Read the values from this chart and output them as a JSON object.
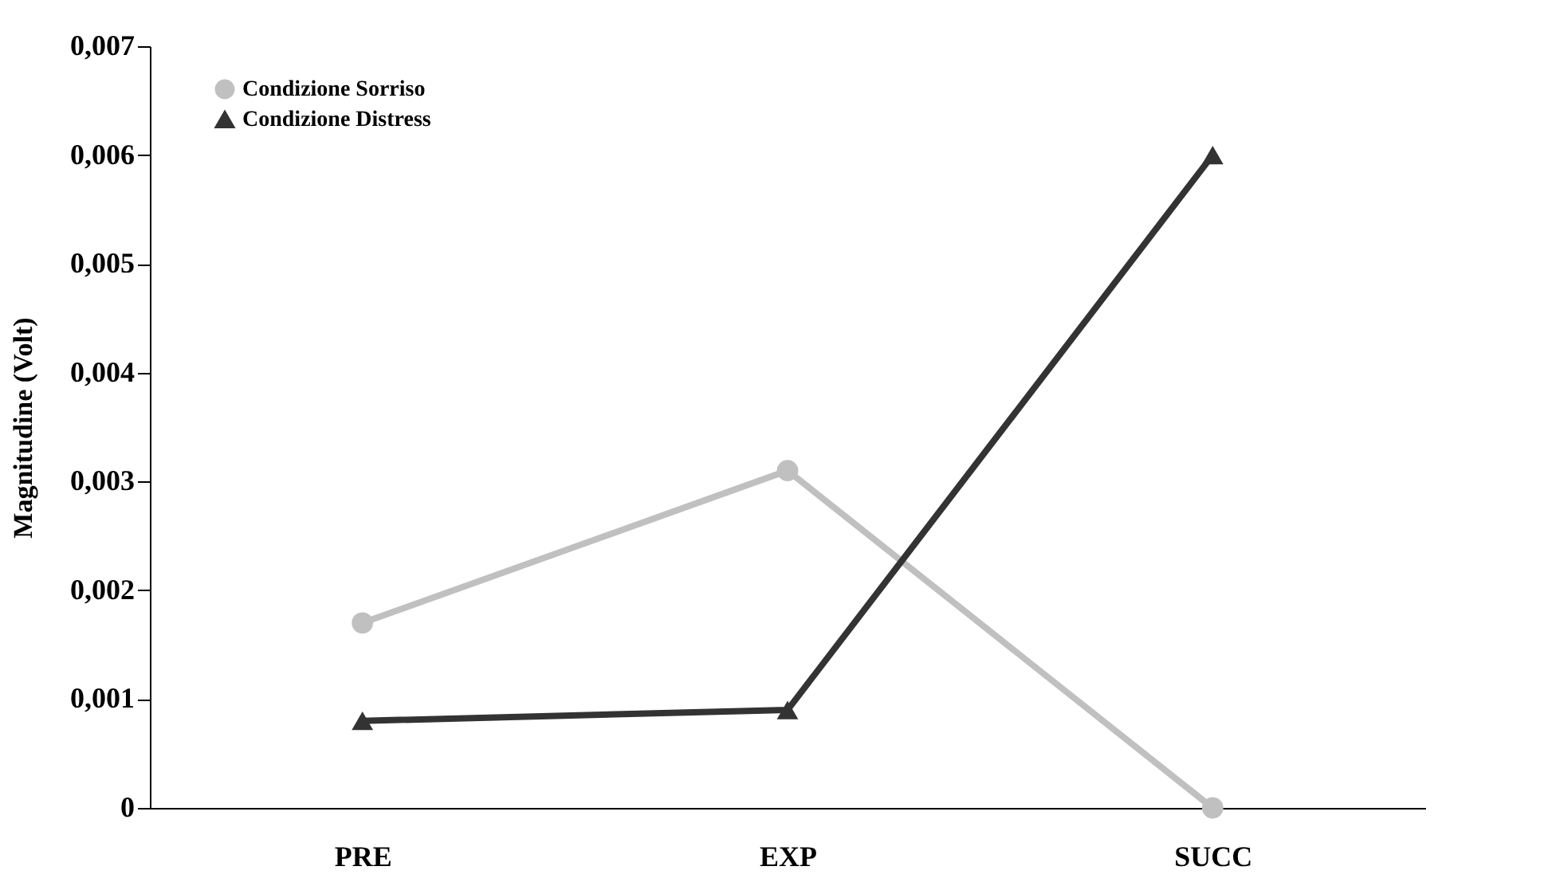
{
  "chart_data": {
    "type": "line",
    "ylabel": "Magnitudine (Volt)",
    "categories": [
      "PRE",
      "EXP",
      "SUCC"
    ],
    "series": [
      {
        "name": "Condizione Sorriso",
        "color": "#c0c0c0",
        "marker": "circle",
        "values": [
          0.0017,
          0.0031,
          0.0
        ]
      },
      {
        "name": "Condizione Distress",
        "color": "#333333",
        "marker": "triangle",
        "values": [
          0.0008,
          0.0009,
          0.006
        ]
      }
    ],
    "ylim": [
      0,
      0.007
    ],
    "yticks": [
      {
        "value": 0,
        "label": "0"
      },
      {
        "value": 0.001,
        "label": "0,001"
      },
      {
        "value": 0.002,
        "label": "0,002"
      },
      {
        "value": 0.003,
        "label": "0,003"
      },
      {
        "value": 0.004,
        "label": "0,004"
      },
      {
        "value": 0.005,
        "label": "0,005"
      },
      {
        "value": 0.006,
        "label": "0,006"
      },
      {
        "value": 0.007,
        "label": "0,007"
      }
    ],
    "grid": false,
    "legend": "top left",
    "line_style": "solid"
  }
}
